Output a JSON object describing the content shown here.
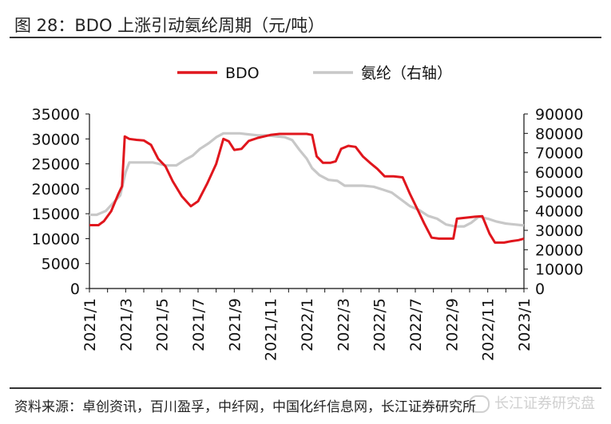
{
  "title": "图 28：BDO 上涨引动氨纶周期（元/吨）",
  "source": "资料来源：卓创资讯，百川盈孚，中纤网，中国化纤信息网，长江证券研究所",
  "watermark": "长江证券研究盘",
  "chart_data": {
    "type": "line",
    "title": "图 28：BDO 上涨引动氨纶周期（元/吨）",
    "xlabel": "",
    "ylabel": "",
    "x_ticks": [
      "2021/1",
      "2021/3",
      "2021/5",
      "2021/7",
      "2021/9",
      "2021/11",
      "2022/1",
      "2022/3",
      "2022/5",
      "2022/7",
      "2022/9",
      "2022/11",
      "2023/1"
    ],
    "x_range": [
      0,
      24
    ],
    "ylim_left": [
      0,
      35000
    ],
    "yticks_left": [
      0,
      5000,
      10000,
      15000,
      20000,
      25000,
      30000,
      35000
    ],
    "ylim_right": [
      0,
      90000
    ],
    "yticks_right": [
      0,
      10000,
      20000,
      30000,
      40000,
      50000,
      60000,
      70000,
      80000,
      90000
    ],
    "grid": false,
    "legend_position": "top-center",
    "series": [
      {
        "name": "BDO",
        "axis": "left",
        "color": "#e0161d",
        "points": [
          [
            0,
            12700
          ],
          [
            0.5,
            12700
          ],
          [
            0.8,
            13500
          ],
          [
            1.2,
            15500
          ],
          [
            1.6,
            19000
          ],
          [
            1.8,
            20500
          ],
          [
            1.95,
            30500
          ],
          [
            2.2,
            30000
          ],
          [
            2.6,
            29800
          ],
          [
            3,
            29700
          ],
          [
            3.4,
            28800
          ],
          [
            3.8,
            26000
          ],
          [
            4.2,
            24500
          ],
          [
            4.6,
            21500
          ],
          [
            5.1,
            18500
          ],
          [
            5.6,
            16500
          ],
          [
            6,
            17500
          ],
          [
            6.5,
            21000
          ],
          [
            7,
            25000
          ],
          [
            7.4,
            30000
          ],
          [
            7.7,
            29500
          ],
          [
            8,
            27800
          ],
          [
            8.4,
            28000
          ],
          [
            8.8,
            29600
          ],
          [
            9.3,
            30200
          ],
          [
            10,
            30800
          ],
          [
            10.5,
            31000
          ],
          [
            11,
            31000
          ],
          [
            11.5,
            31000
          ],
          [
            12,
            31000
          ],
          [
            12.3,
            30800
          ],
          [
            12.55,
            26500
          ],
          [
            12.9,
            25200
          ],
          [
            13.3,
            25200
          ],
          [
            13.6,
            25500
          ],
          [
            13.9,
            28000
          ],
          [
            14.3,
            28600
          ],
          [
            14.7,
            28400
          ],
          [
            15.1,
            26500
          ],
          [
            15.5,
            25200
          ],
          [
            15.9,
            24000
          ],
          [
            16.3,
            22500
          ],
          [
            16.8,
            22500
          ],
          [
            17.3,
            22300
          ],
          [
            17.7,
            19000
          ],
          [
            18.1,
            16000
          ],
          [
            18.5,
            13000
          ],
          [
            18.9,
            10200
          ],
          [
            19.3,
            10000
          ],
          [
            19.8,
            10000
          ],
          [
            20.1,
            10000
          ],
          [
            20.3,
            14000
          ],
          [
            20.8,
            14200
          ],
          [
            21.3,
            14400
          ],
          [
            21.7,
            14500
          ],
          [
            22.1,
            11000
          ],
          [
            22.4,
            9200
          ],
          [
            22.9,
            9200
          ],
          [
            23.3,
            9500
          ],
          [
            23.7,
            9700
          ],
          [
            24,
            10000
          ]
        ]
      },
      {
        "name": "氨纶（右轴）",
        "axis": "right",
        "color": "#c8c8c8",
        "points": [
          [
            0,
            38000
          ],
          [
            0.4,
            38000
          ],
          [
            0.9,
            40000
          ],
          [
            1.3,
            44000
          ],
          [
            1.7,
            48000
          ],
          [
            2.0,
            60000
          ],
          [
            2.2,
            65000
          ],
          [
            2.8,
            65000
          ],
          [
            3.5,
            65000
          ],
          [
            4.2,
            63500
          ],
          [
            4.8,
            63500
          ],
          [
            5.3,
            66500
          ],
          [
            5.7,
            68500
          ],
          [
            6.1,
            72000
          ],
          [
            6.6,
            75000
          ],
          [
            7,
            78000
          ],
          [
            7.4,
            80000
          ],
          [
            7.9,
            80000
          ],
          [
            8.3,
            80000
          ],
          [
            8.8,
            79500
          ],
          [
            9.3,
            79000
          ],
          [
            9.8,
            79000
          ],
          [
            10.3,
            78500
          ],
          [
            10.8,
            78000
          ],
          [
            11.2,
            76500
          ],
          [
            11.6,
            71500
          ],
          [
            12.0,
            67000
          ],
          [
            12.3,
            62000
          ],
          [
            12.7,
            58500
          ],
          [
            13.2,
            56000
          ],
          [
            13.7,
            55500
          ],
          [
            14.1,
            53000
          ],
          [
            14.5,
            53000
          ],
          [
            15.1,
            53000
          ],
          [
            15.7,
            52500
          ],
          [
            16.2,
            51000
          ],
          [
            16.7,
            49500
          ],
          [
            17.2,
            46000
          ],
          [
            17.7,
            42500
          ],
          [
            18.2,
            40500
          ],
          [
            18.7,
            37500
          ],
          [
            19.2,
            36000
          ],
          [
            19.7,
            33000
          ],
          [
            20.2,
            32000
          ],
          [
            20.7,
            32000
          ],
          [
            21.1,
            34000
          ],
          [
            21.5,
            37000
          ],
          [
            22.0,
            36000
          ],
          [
            22.5,
            34500
          ],
          [
            23,
            33500
          ],
          [
            23.5,
            33000
          ],
          [
            24,
            32500
          ]
        ]
      }
    ]
  }
}
